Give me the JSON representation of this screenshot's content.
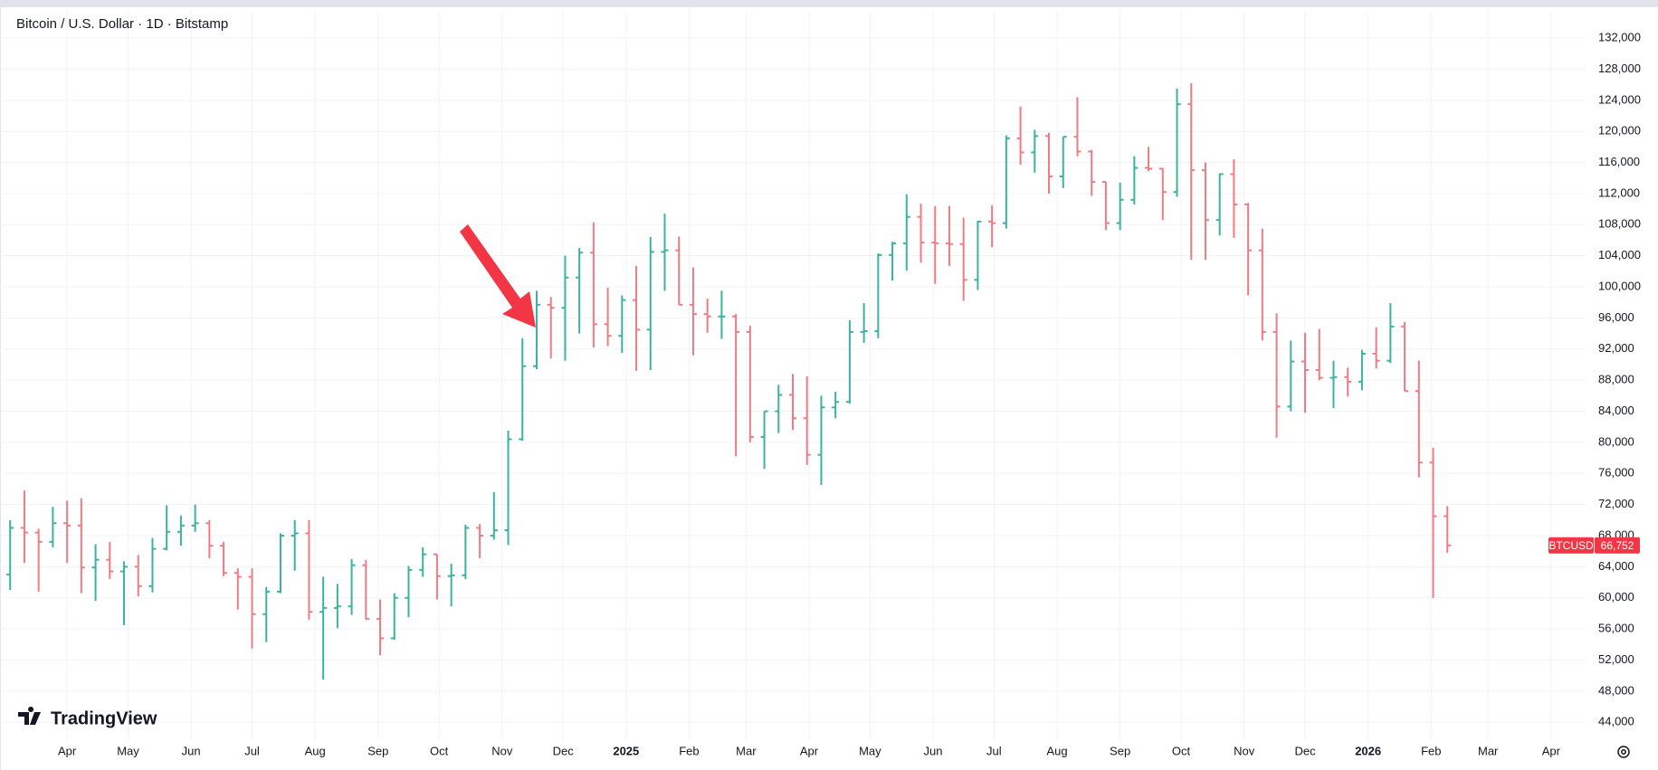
{
  "chart_data": {
    "type": "ohlc",
    "title": "Bitcoin / U.S. Dollar · 1D · Bitstamp",
    "logo": "TradingView",
    "symbol": "BTCUSD",
    "last_price_label": "66,752",
    "up_color": "#3bb3a0",
    "down_color": "#f07b84",
    "grid": true,
    "x": [
      -28,
      -21,
      -14,
      -7,
      0,
      7,
      14,
      21,
      28,
      35,
      42,
      49,
      56,
      63,
      70,
      77,
      84,
      91,
      98,
      105,
      112,
      119,
      126,
      133,
      140,
      147,
      154,
      161,
      168,
      175,
      182,
      189,
      196,
      203,
      210,
      217,
      224,
      231,
      238,
      245,
      252,
      259,
      266,
      273,
      280,
      287,
      294,
      301,
      308,
      315,
      322,
      329,
      336,
      343,
      350,
      357,
      364,
      371,
      378,
      385,
      392,
      399,
      406,
      413,
      420,
      427,
      434,
      441,
      448,
      455,
      462,
      469,
      476,
      483,
      490,
      497,
      504,
      511,
      518,
      525,
      532,
      539,
      546,
      553,
      560,
      567,
      574,
      581,
      588,
      595,
      602,
      609,
      616,
      623,
      630,
      637,
      644,
      651,
      658,
      665,
      672,
      679
    ],
    "open": [
      63000,
      69000,
      68400,
      67200,
      69600,
      69300,
      63900,
      64900,
      63400,
      64000,
      61500,
      66300,
      68500,
      69300,
      69600,
      66700,
      63200,
      62700,
      57900,
      60800,
      68000,
      68300,
      58200,
      58700,
      58900,
      64200,
      57300,
      54800,
      60000,
      63600,
      65600,
      62800,
      62900,
      69000,
      68000,
      68700,
      80400,
      89800,
      97700,
      97300,
      101200,
      104400,
      95200,
      93700,
      98300,
      94500,
      104500,
      104700,
      97700,
      96500,
      96200,
      96200,
      94200,
      80700,
      84000,
      86100,
      83100,
      78400,
      84500,
      85200,
      94200,
      94300,
      104100,
      105600,
      109000,
      105700,
      105600,
      105500,
      100900,
      108400,
      108200,
      119100,
      117300,
      119400,
      114200,
      119300,
      117400,
      113500,
      108200,
      111200,
      115300,
      115200,
      112200,
      123500,
      115000,
      108600,
      114500,
      110600,
      104700,
      94200,
      84600,
      90400,
      89300,
      88300,
      88400,
      87800,
      91400,
      90500,
      94900,
      86600,
      77400,
      70500
    ],
    "high": [
      70000,
      73800,
      68900,
      71700,
      72500,
      72800,
      66900,
      67200,
      64700,
      65500,
      67700,
      71900,
      70600,
      72000,
      70000,
      67200,
      63800,
      63800,
      61400,
      68300,
      70000,
      70000,
      62700,
      61800,
      65000,
      64900,
      59800,
      60600,
      64100,
      66500,
      65600,
      64400,
      69400,
      69500,
      73600,
      81500,
      93400,
      99500,
      98700,
      104000,
      105000,
      108300,
      99900,
      98900,
      102700,
      106400,
      109400,
      106500,
      102500,
      98500,
      99500,
      96500,
      95000,
      84000,
      87400,
      88800,
      88500,
      86000,
      86500,
      95700,
      97900,
      104300,
      105800,
      111900,
      110700,
      110400,
      110400,
      108900,
      108500,
      110500,
      119500,
      123200,
      120200,
      119800,
      119300,
      124400,
      117600,
      113500,
      113400,
      116800,
      118000,
      115300,
      125500,
      126200,
      116000,
      114600,
      116400,
      110800,
      107500,
      96600,
      93100,
      94100,
      94600,
      90500,
      89600,
      91900,
      94800,
      97900,
      95500,
      90500,
      79300,
      71800
    ],
    "low": [
      61000,
      64500,
      60800,
      66500,
      64500,
      60600,
      59600,
      62400,
      56500,
      60200,
      60700,
      66100,
      66700,
      68500,
      65100,
      62800,
      58500,
      53500,
      54300,
      60600,
      63500,
      57200,
      49500,
      56100,
      57800,
      57200,
      52600,
      54600,
      57500,
      62700,
      59800,
      58900,
      62400,
      65100,
      67500,
      66800,
      80200,
      89400,
      90800,
      90500,
      94000,
      92200,
      92400,
      91500,
      89200,
      89300,
      99500,
      97700,
      91200,
      94100,
      93300,
      78200,
      80000,
      76600,
      81200,
      81600,
      77100,
      74500,
      83100,
      85000,
      92800,
      93400,
      100800,
      102100,
      103100,
      100400,
      102700,
      98200,
      99600,
      105100,
      107500,
      115700,
      114700,
      112000,
      112700,
      116800,
      111700,
      107300,
      107300,
      110600,
      114900,
      108600,
      111600,
      103500,
      103500,
      106600,
      106300,
      98900,
      93100,
      80600,
      84000,
      83800,
      88000,
      84400,
      85900,
      86700,
      89500,
      90200,
      86600,
      75500,
      60000,
      65800
    ],
    "close": [
      69000,
      68400,
      67200,
      69600,
      69300,
      63900,
      64900,
      63400,
      64000,
      61500,
      66300,
      68500,
      69300,
      69600,
      66700,
      63200,
      62700,
      57900,
      60800,
      68000,
      68300,
      58200,
      58700,
      58900,
      64200,
      57300,
      54800,
      60000,
      63600,
      65600,
      62800,
      62900,
      69000,
      68000,
      68700,
      80400,
      89800,
      97700,
      97300,
      101200,
      104400,
      95200,
      93700,
      98300,
      94500,
      104500,
      104700,
      97700,
      96500,
      96200,
      96200,
      94200,
      80700,
      84000,
      86100,
      83100,
      78400,
      84500,
      85200,
      94200,
      94300,
      104100,
      105600,
      109000,
      105700,
      105600,
      105500,
      100900,
      108400,
      108200,
      119100,
      117300,
      119400,
      114200,
      119300,
      117400,
      113500,
      108200,
      111200,
      115300,
      115200,
      112200,
      123500,
      115000,
      108600,
      114500,
      110600,
      104700,
      94200,
      84600,
      90400,
      89300,
      88300,
      88400,
      87800,
      91400,
      90500,
      94900,
      86600,
      77400,
      70500,
      66752
    ],
    "xlim": [
      -33,
      747
    ],
    "xticks": [
      {
        "value": 0,
        "label": "Apr"
      },
      {
        "value": 30,
        "label": "May"
      },
      {
        "value": 61,
        "label": "Jun"
      },
      {
        "value": 91,
        "label": "Jul"
      },
      {
        "value": 122,
        "label": "Aug"
      },
      {
        "value": 153,
        "label": "Sep"
      },
      {
        "value": 183,
        "label": "Oct"
      },
      {
        "value": 214,
        "label": "Nov"
      },
      {
        "value": 244,
        "label": "Dec"
      },
      {
        "value": 275,
        "label": "2025"
      },
      {
        "value": 306,
        "label": "Feb"
      },
      {
        "value": 334,
        "label": "Mar"
      },
      {
        "value": 365,
        "label": "Apr"
      },
      {
        "value": 395,
        "label": "May"
      },
      {
        "value": 426,
        "label": "Jun"
      },
      {
        "value": 456,
        "label": "Jul"
      },
      {
        "value": 487,
        "label": "Aug"
      },
      {
        "value": 518,
        "label": "Sep"
      },
      {
        "value": 548,
        "label": "Oct"
      },
      {
        "value": 579,
        "label": "Nov"
      },
      {
        "value": 609,
        "label": "Dec"
      },
      {
        "value": 640,
        "label": "2026"
      },
      {
        "value": 671,
        "label": "Feb"
      },
      {
        "value": 699,
        "label": "Mar"
      },
      {
        "value": 730,
        "label": "Apr"
      }
    ],
    "ylim": [
      41700,
      135500
    ],
    "yticks": [
      {
        "value": 44000,
        "label": "44,000"
      },
      {
        "value": 48000,
        "label": "48,000"
      },
      {
        "value": 52000,
        "label": "52,000"
      },
      {
        "value": 56000,
        "label": "56,000"
      },
      {
        "value": 60000,
        "label": "60,000"
      },
      {
        "value": 64000,
        "label": "64,000"
      },
      {
        "value": 68000,
        "label": "68,000"
      },
      {
        "value": 72000,
        "label": "72,000"
      },
      {
        "value": 76000,
        "label": "76,000"
      },
      {
        "value": 80000,
        "label": "80,000"
      },
      {
        "value": 84000,
        "label": "84,000"
      },
      {
        "value": 88000,
        "label": "88,000"
      },
      {
        "value": 92000,
        "label": "92,000"
      },
      {
        "value": 96000,
        "label": "96,000"
      },
      {
        "value": 100000,
        "label": "100,000"
      },
      {
        "value": 104000,
        "label": "104,000"
      },
      {
        "value": 108000,
        "label": "108,000"
      },
      {
        "value": 112000,
        "label": "112,000"
      },
      {
        "value": 116000,
        "label": "116,000"
      },
      {
        "value": 120000,
        "label": "120,000"
      },
      {
        "value": 124000,
        "label": "124,000"
      },
      {
        "value": 128000,
        "label": "128,000"
      },
      {
        "value": 132000,
        "label": "132,000"
      }
    ]
  }
}
